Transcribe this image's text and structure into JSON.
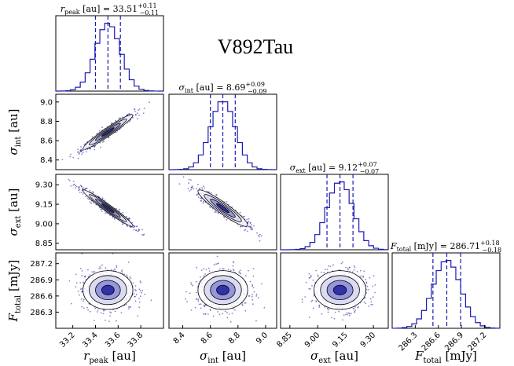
{
  "object_name": "V892Tau",
  "chart_data": {
    "type": "scatter",
    "subtype": "corner-plot",
    "colors": {
      "accent": "#1a1ab4",
      "fill": "#23239a",
      "axes": "#000000"
    },
    "parameters": [
      {
        "id": "r_peak",
        "label": "r_peak [au]",
        "title": "r_peak [au] = 33.51 (+0.11 / -0.11)",
        "median": 33.51,
        "err_plus": 0.11,
        "err_minus": 0.11,
        "range": [
          33.05,
          34.0
        ],
        "ticks": [
          "33.2",
          "33.4",
          "33.6",
          "33.8"
        ]
      },
      {
        "id": "sigma_int",
        "label": "σ_int [au]",
        "title": "σ_int [au] = 8.69 (+0.09 / -0.09)",
        "median": 8.69,
        "err_plus": 0.09,
        "err_minus": 0.09,
        "range": [
          8.3,
          9.08
        ],
        "ticks": [
          "8.4",
          "8.6",
          "8.8",
          "9.0"
        ]
      },
      {
        "id": "sigma_ext",
        "label": "σ_ext [au]",
        "title": "σ_ext [au] = 9.12 (+0.07 / -0.07)",
        "median": 9.12,
        "err_plus": 0.07,
        "err_minus": 0.07,
        "range": [
          8.8,
          9.38
        ],
        "ticks": [
          "8.85",
          "9.00",
          "9.15",
          "9.30"
        ]
      },
      {
        "id": "F_total",
        "label": "F_total [mJy]",
        "title": "F_total [mJy] = 286.71 (+0.18 / -0.18)",
        "median": 286.71,
        "err_plus": 0.18,
        "err_minus": 0.18,
        "range": [
          286.0,
          287.4
        ],
        "ticks": [
          "286.3",
          "286.6",
          "286.9",
          "287.2"
        ]
      }
    ],
    "quantiles": [
      0.16,
      0.5,
      0.84
    ],
    "correlations": [
      {
        "x": "r_peak",
        "y": "sigma_int",
        "rho": 0.96
      },
      {
        "x": "r_peak",
        "y": "sigma_ext",
        "rho": -0.97
      },
      {
        "x": "sigma_int",
        "y": "sigma_ext",
        "rho": -0.93
      },
      {
        "x": "r_peak",
        "y": "F_total",
        "rho": 0.0
      },
      {
        "x": "sigma_int",
        "y": "F_total",
        "rho": 0.0
      },
      {
        "x": "sigma_ext",
        "y": "F_total",
        "rho": 0.0
      }
    ]
  }
}
